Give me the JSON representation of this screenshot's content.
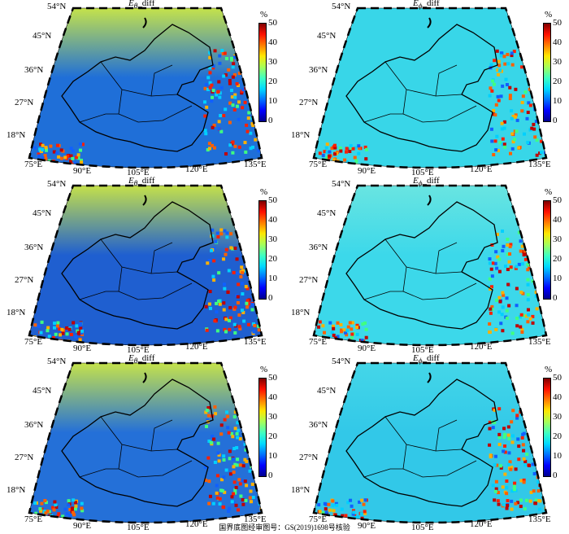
{
  "figure": {
    "footer_note": "国界底图经审图号：GS(2019)1698号核验",
    "colorbar": {
      "unit": "%",
      "ticks": [
        "50",
        "40",
        "30",
        "20",
        "10",
        "0"
      ],
      "range": [
        0,
        50
      ],
      "colormap": "jet"
    },
    "latitude_labels": [
      "54°N",
      "45°N",
      "36°N",
      "27°N",
      "18°N"
    ],
    "longitude_labels": [
      "75°E",
      "90°E",
      "105°E",
      "120°E",
      "135°E"
    ],
    "panels": [
      {
        "title_symbol": "E",
        "title_sub": "θ",
        "title_suffix": "_diff",
        "background": "#1f6fd8",
        "north": "#d8f03a"
      },
      {
        "title_symbol": "E",
        "title_sub": "ϕ",
        "title_suffix": "_diff",
        "background": "#38d6e8",
        "north": "#38d6e8"
      },
      {
        "title_symbol": "E",
        "title_sub": "θ",
        "title_suffix": "_diff",
        "background": "#1f5fd0",
        "north": "#d8f03a"
      },
      {
        "title_symbol": "E",
        "title_sub": "ϕ",
        "title_suffix": "_diff",
        "background": "#3cd8ea",
        "north": "#6ee6e0"
      },
      {
        "title_symbol": "E",
        "title_sub": "θ",
        "title_suffix": "_diff",
        "background": "#2470d8",
        "north": "#d8f03a"
      },
      {
        "title_symbol": "E",
        "title_sub": "ϕ",
        "title_suffix": "_diff",
        "background": "#32c8e8",
        "north": "#46d8e8"
      }
    ]
  }
}
